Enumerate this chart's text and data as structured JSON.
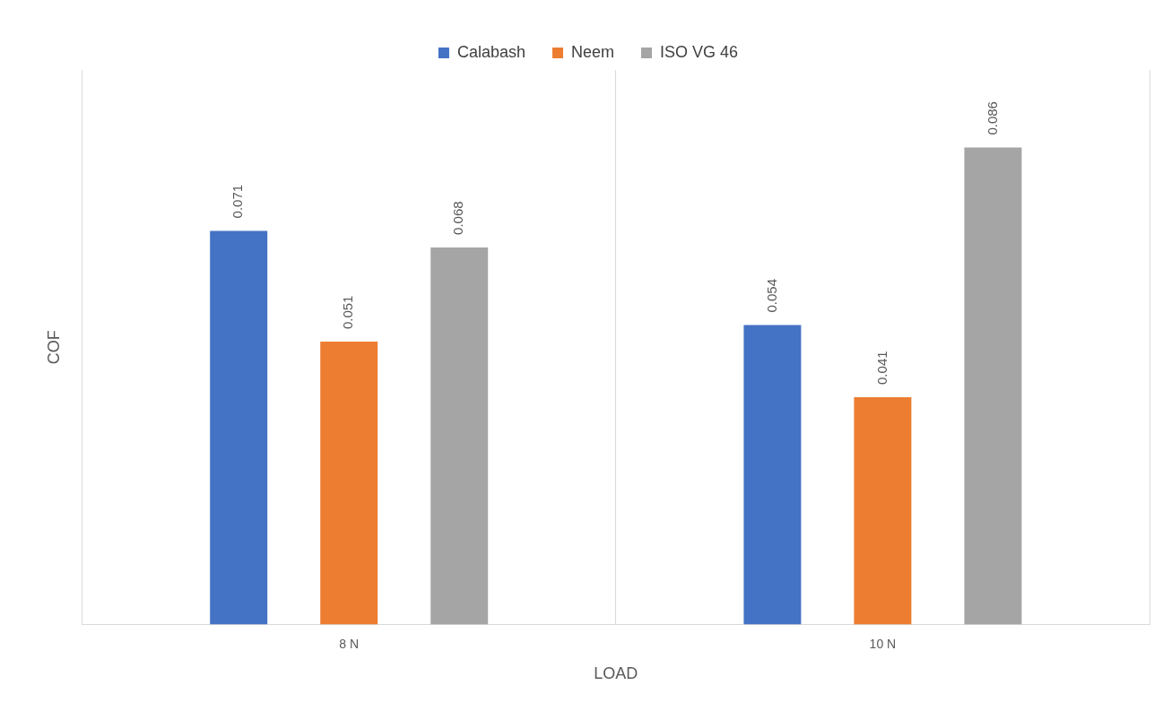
{
  "chart_data": {
    "type": "bar",
    "xlabel": "LOAD",
    "ylabel": "COF",
    "categories": [
      "8 N",
      "10 N"
    ],
    "series": [
      {
        "name": "Calabash",
        "color": "#4472c4",
        "values": [
          0.071,
          0.054
        ]
      },
      {
        "name": "Neem",
        "color": "#ed7d31",
        "values": [
          0.051,
          0.041
        ]
      },
      {
        "name": "ISO VG 46",
        "color": "#a5a5a5",
        "values": [
          0.068,
          0.086
        ]
      }
    ],
    "ylim": [
      0,
      0.1
    ],
    "grid": "x",
    "legend": "top",
    "data_labels": true
  }
}
